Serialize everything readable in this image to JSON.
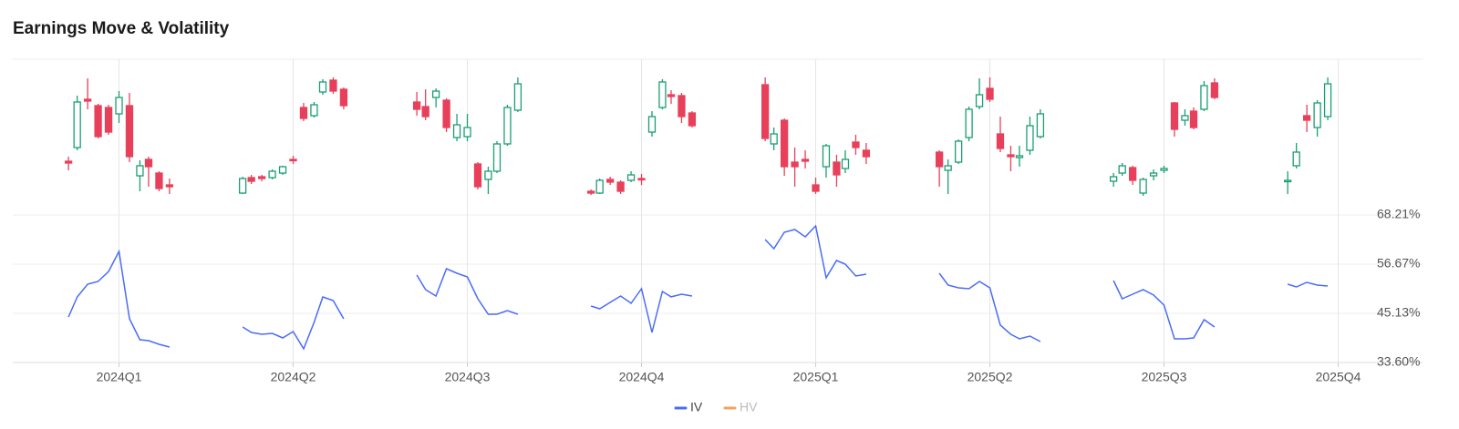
{
  "chart_data": {
    "type": "candlestick",
    "title": "Earnings Move & Volatility",
    "xlim": [
      -0.61,
      7.17
    ],
    "xticks": [
      {
        "value": 0,
        "label": "2024Q1"
      },
      {
        "value": 1,
        "label": "2024Q2"
      },
      {
        "value": 2,
        "label": "2024Q3"
      },
      {
        "value": 3,
        "label": "2024Q4"
      },
      {
        "value": 4,
        "label": "2025Q1"
      },
      {
        "value": 5,
        "label": "2025Q2"
      },
      {
        "value": 6,
        "label": "2025Q3"
      },
      {
        "value": 7,
        "label": "2025Q4"
      }
    ],
    "candles": {
      "up_color": "#1a9f72",
      "down_color": "#e8405a",
      "ylim": [
        0,
        160
      ],
      "x": [
        -0.29,
        -0.24,
        -0.18,
        -0.12,
        -0.06,
        0,
        0.06,
        0.12,
        0.17,
        0.23,
        0.29,
        0.71,
        0.76,
        0.82,
        0.88,
        0.94,
        1,
        1.06,
        1.12,
        1.17,
        1.23,
        1.29,
        1.71,
        1.76,
        1.82,
        1.88,
        1.94,
        2,
        2.06,
        2.12,
        2.17,
        2.23,
        2.29,
        2.71,
        2.76,
        2.82,
        2.88,
        2.94,
        3,
        3.06,
        3.12,
        3.17,
        3.23,
        3.29,
        3.71,
        3.76,
        3.82,
        3.88,
        3.94,
        4,
        4.06,
        4.12,
        4.17,
        4.23,
        4.29,
        4.71,
        4.76,
        4.82,
        4.88,
        4.94,
        5,
        5.06,
        5.12,
        5.17,
        5.23,
        5.29,
        5.71,
        5.76,
        5.82,
        5.88,
        5.94,
        6,
        6.06,
        6.12,
        6.17,
        6.23,
        6.29,
        6.71,
        6.76,
        6.82,
        6.88,
        6.94
      ],
      "open": [
        48,
        63,
        116,
        109,
        107,
        100,
        109,
        32,
        50,
        35,
        22,
        13,
        30,
        31,
        30,
        35,
        50,
        107,
        98,
        124,
        137,
        127,
        113,
        108,
        118,
        115,
        74,
        75,
        45,
        28,
        37,
        67,
        104,
        15,
        13,
        28,
        25,
        27,
        29,
        80,
        107,
        121,
        120,
        101,
        132,
        67,
        93,
        47,
        50,
        22,
        42,
        47,
        40,
        69,
        60,
        58,
        38,
        47,
        74,
        108,
        128,
        78,
        55,
        52,
        60,
        75,
        26,
        35,
        41,
        13,
        32,
        38,
        112,
        93,
        103,
        105,
        134,
        26,
        43,
        98,
        85,
        97
      ],
      "high": [
        53,
        120,
        139,
        111,
        110,
        125,
        123,
        49,
        53,
        37,
        29,
        31,
        33,
        33,
        39,
        43,
        54,
        112,
        113,
        138,
        140,
        129,
        124,
        127,
        128,
        117,
        100,
        100,
        47,
        42,
        70,
        110,
        140,
        17,
        29,
        31,
        27,
        37,
        34,
        103,
        138,
        126,
        123,
        103,
        140,
        85,
        95,
        63,
        60,
        30,
        67,
        55,
        60,
        77,
        68,
        60,
        50,
        72,
        108,
        139,
        140,
        97,
        65,
        65,
        97,
        105,
        35,
        46,
        43,
        30,
        39,
        43,
        113,
        105,
        107,
        136,
        139,
        37,
        68,
        110,
        115,
        140
      ],
      "low": [
        38,
        60,
        105,
        73,
        77,
        90,
        47,
        15,
        20,
        15,
        12,
        12,
        23,
        26,
        28,
        33,
        45,
        92,
        96,
        121,
        122,
        105,
        98,
        93,
        107,
        80,
        70,
        70,
        17,
        12,
        35,
        65,
        102,
        11,
        12,
        22,
        12,
        25,
        22,
        75,
        105,
        111,
        90,
        85,
        70,
        60,
        32,
        20,
        40,
        12,
        30,
        20,
        35,
        55,
        45,
        20,
        12,
        45,
        70,
        105,
        113,
        58,
        37,
        42,
        55,
        73,
        20,
        32,
        22,
        10,
        27,
        35,
        75,
        87,
        83,
        103,
        116,
        12,
        40,
        80,
        75,
        93
      ],
      "close": [
        46,
        113,
        114,
        75,
        80,
        118,
        53,
        43,
        42,
        18,
        20,
        29,
        26,
        29,
        37,
        42,
        49,
        95,
        110,
        135,
        125,
        109,
        105,
        97,
        125,
        85,
        88,
        85,
        20,
        37,
        67,
        107,
        133,
        13,
        27,
        25,
        15,
        33,
        28,
        97,
        135,
        119,
        97,
        87,
        73,
        78,
        42,
        42,
        48,
        15,
        65,
        33,
        50,
        63,
        53,
        42,
        43,
        70,
        105,
        121,
        116,
        62,
        53,
        54,
        87,
        100,
        31,
        43,
        27,
        28,
        35,
        40,
        83,
        98,
        85,
        131,
        118,
        27,
        58,
        93,
        112,
        133
      ]
    },
    "ylim": [
      33.6,
      68.21
    ],
    "yticks": [
      {
        "value": 33.6,
        "label": "33.60%"
      },
      {
        "value": 45.13,
        "label": "45.13%"
      },
      {
        "value": 56.67,
        "label": "56.67%"
      },
      {
        "value": 68.21,
        "label": "68.21%"
      }
    ],
    "grid": true,
    "legend": "bottom",
    "series": [
      {
        "name": "IV",
        "color": "#4a6cf7",
        "x": [
          -0.29,
          -0.24,
          -0.18,
          -0.12,
          -0.06,
          0,
          0.06,
          0.12,
          0.17,
          0.23,
          0.29,
          null,
          0.71,
          0.76,
          0.82,
          0.88,
          0.94,
          1,
          1.06,
          1.12,
          1.17,
          1.23,
          1.29,
          null,
          1.71,
          1.76,
          1.82,
          1.88,
          1.94,
          2,
          2.06,
          2.12,
          2.17,
          2.23,
          2.29,
          null,
          2.71,
          2.76,
          2.82,
          2.88,
          2.94,
          3,
          3.06,
          3.12,
          3.17,
          3.23,
          3.29,
          null,
          3.71,
          3.76,
          3.82,
          3.88,
          3.94,
          4,
          4.06,
          4.12,
          4.17,
          4.23,
          4.29,
          null,
          4.71,
          4.76,
          4.82,
          4.88,
          4.94,
          5,
          5.06,
          5.12,
          5.17,
          5.23,
          5.29,
          null,
          5.71,
          5.76,
          5.82,
          5.88,
          5.94,
          6,
          6.06,
          6.12,
          6.17,
          6.23,
          6.29,
          null,
          6.71,
          6.76,
          6.82,
          6.88,
          6.94
        ],
        "values": [
          44.28,
          48.98,
          51.97,
          52.61,
          54.96,
          59.66,
          43.85,
          38.94,
          38.72,
          37.87,
          37.23,
          null,
          41.93,
          40.65,
          40.22,
          40.44,
          39.37,
          40.86,
          36.8,
          43.0,
          48.98,
          48.12,
          43.85,
          null,
          54.1,
          50.69,
          49.19,
          55.6,
          54.53,
          53.68,
          48.55,
          44.92,
          44.92,
          45.77,
          44.92,
          null,
          46.84,
          46.2,
          47.69,
          49.19,
          47.48,
          50.9,
          40.65,
          50.26,
          49.0,
          49.62,
          49.19,
          null,
          62.44,
          60.3,
          64.15,
          64.79,
          63.08,
          65.64,
          53.46,
          57.52,
          56.67,
          53.89,
          54.32,
          null,
          54.53,
          51.76,
          51.12,
          50.9,
          52.61,
          51.12,
          42.36,
          40.22,
          39.16,
          39.8,
          38.51,
          null,
          52.82,
          48.55,
          49.62,
          50.69,
          49.41,
          47.06,
          39.16,
          39.16,
          39.37,
          43.64,
          41.93,
          null,
          51.97,
          51.33,
          52.4,
          51.76,
          51.55
        ]
      },
      {
        "name": "HV",
        "color": "#f4a261",
        "hidden": true
      }
    ]
  }
}
